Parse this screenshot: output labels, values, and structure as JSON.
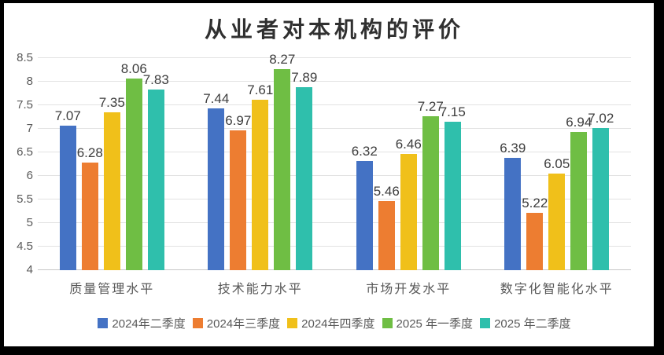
{
  "chart_data": {
    "type": "bar",
    "title": "从业者对本机构的评价",
    "categories": [
      "质量管理水平",
      "技术能力水平",
      "市场开发水平",
      "数字化智能化水平"
    ],
    "series": [
      {
        "name": "2024年二季度",
        "color": "#4472C4",
        "values": [
          7.07,
          7.44,
          6.32,
          6.39
        ]
      },
      {
        "name": "2024年三季度",
        "color": "#ED7D31",
        "values": [
          6.28,
          6.97,
          5.46,
          5.22
        ]
      },
      {
        "name": "2024年四季度",
        "color": "#F0C01A",
        "values": [
          7.35,
          7.61,
          6.46,
          6.05
        ]
      },
      {
        "name": "2025 年一季度",
        "color": "#6FBE44",
        "values": [
          8.06,
          8.27,
          7.27,
          6.94
        ]
      },
      {
        "name": "2025 年二季度",
        "color": "#2FBFAC",
        "values": [
          7.83,
          7.89,
          7.15,
          7.02
        ]
      }
    ],
    "ylim": [
      4,
      8.5
    ],
    "y_ticks": [
      "4",
      "4.5",
      "5",
      "5.5",
      "6",
      "6.5",
      "7",
      "7.5",
      "8",
      "8.5"
    ],
    "grid": true,
    "data_labels": true,
    "legend_position": "bottom",
    "xlabel": "",
    "ylabel": ""
  }
}
